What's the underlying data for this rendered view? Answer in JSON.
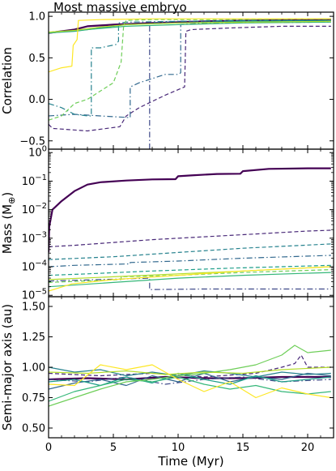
{
  "chart_data": {
    "title": "Most massive embryo",
    "xlabel": "Time (Myr)",
    "xlim": [
      0,
      22
    ],
    "x_ticks": [
      "0",
      "5",
      "10",
      "15",
      "20"
    ],
    "x_tick_values": [
      0,
      5,
      10,
      15,
      20
    ],
    "shared_x": true,
    "series_colors": [
      "#440154",
      "#482878",
      "#3e4989",
      "#31688e",
      "#26828e",
      "#1f9e89",
      "#35b779",
      "#6ece58",
      "#b5de2b",
      "#fde725"
    ],
    "panels": [
      {
        "type": "line",
        "ylabel": "Correlation",
        "yscale": "linear",
        "ylim": [
          -0.6,
          1.05
        ],
        "y_ticks": [
          "−0.5",
          "0.0",
          "0.5",
          "1.0"
        ],
        "y_tick_values": [
          -0.5,
          0.0,
          0.5,
          1.0
        ],
        "series": [
          {
            "color": "#440154",
            "style": "solid",
            "width": 2.2,
            "x": [
              0,
              2,
              3,
              5,
              8,
              12,
              16,
              20,
              21.8
            ],
            "y": [
              0.8,
              0.84,
              0.88,
              0.9,
              0.92,
              0.94,
              0.95,
              0.96,
              0.96
            ]
          },
          {
            "color": "#482878",
            "style": "dashed",
            "width": 1.2,
            "x": [
              0,
              0.3,
              3,
              5.5,
              6,
              7,
              9,
              10.5,
              10.6,
              11,
              14,
              18,
              21.8
            ],
            "y": [
              -0.3,
              -0.35,
              -0.38,
              -0.33,
              -0.2,
              -0.1,
              0.05,
              0.15,
              0.82,
              0.84,
              0.86,
              0.88,
              0.88
            ]
          },
          {
            "color": "#3e4989",
            "style": "dashdot",
            "width": 1.2,
            "x": [
              7.8,
              7.8,
              8,
              9,
              10,
              12,
              16,
              21.8
            ],
            "y": [
              -0.6,
              0.9,
              0.92,
              0.93,
              0.94,
              0.94,
              0.95,
              0.95
            ]
          },
          {
            "color": "#31688e",
            "style": "dashdot",
            "width": 1.2,
            "x": [
              0,
              2,
              4,
              6.3,
              6.3,
              7,
              9,
              10,
              10.2,
              10.2,
              12,
              21.8
            ],
            "y": [
              -0.2,
              -0.18,
              -0.2,
              -0.22,
              0.15,
              0.2,
              0.3,
              0.3,
              0.32,
              0.9,
              0.92,
              0.93
            ]
          },
          {
            "color": "#26828e",
            "style": "dashdot",
            "width": 1.2,
            "x": [
              0,
              1,
              2,
              3,
              3.3,
              3.3,
              4,
              5.2,
              5.4,
              5.4,
              6,
              10,
              15,
              21.8
            ],
            "y": [
              -0.05,
              -0.1,
              -0.18,
              -0.2,
              -0.2,
              0.62,
              0.62,
              0.66,
              0.7,
              0.92,
              0.93,
              0.94,
              0.95,
              0.95
            ]
          },
          {
            "color": "#1f9e89",
            "style": "solid",
            "width": 1.2,
            "x": [
              0,
              2,
              4,
              6,
              10,
              15,
              21.8
            ],
            "y": [
              0.8,
              0.82,
              0.86,
              0.9,
              0.92,
              0.94,
              0.95
            ]
          },
          {
            "color": "#35b779",
            "style": "solid",
            "width": 1.2,
            "x": [
              0,
              3,
              6,
              10,
              15,
              21.8
            ],
            "y": [
              0.8,
              0.84,
              0.88,
              0.9,
              0.92,
              0.93
            ]
          },
          {
            "color": "#6ece58",
            "style": "dashed",
            "width": 1.2,
            "x": [
              0,
              1,
              2,
              3,
              4,
              5,
              5.6,
              5.8,
              6,
              8,
              12,
              21.8
            ],
            "y": [
              -0.25,
              -0.2,
              -0.05,
              0.0,
              0.1,
              0.2,
              0.45,
              0.9,
              0.95,
              0.96,
              0.96,
              0.97
            ]
          },
          {
            "color": "#b5de2b",
            "style": "solid",
            "width": 1.2,
            "x": [
              0,
              2,
              4,
              6,
              10,
              15,
              21.8
            ],
            "y": [
              0.81,
              0.83,
              0.87,
              0.9,
              0.92,
              0.93,
              0.94
            ]
          },
          {
            "color": "#fde725",
            "style": "solid",
            "width": 1.2,
            "x": [
              0,
              1,
              1.8,
              1.9,
              2.2,
              2.3,
              4,
              8,
              14,
              21.8
            ],
            "y": [
              0.33,
              0.38,
              0.4,
              0.65,
              0.72,
              0.95,
              0.96,
              0.97,
              0.97,
              0.97
            ]
          }
        ]
      },
      {
        "type": "line",
        "ylabel": "Mass (M",
        "ylabel_sub": "⊕",
        "ylabel_close": ")",
        "yscale": "log",
        "ylim_log10": [
          -5.05,
          0.12
        ],
        "y_ticks": [
          {
            "base": "10",
            "exp": "0"
          },
          {
            "base": "10",
            "exp": "−1"
          },
          {
            "base": "10",
            "exp": "−2"
          },
          {
            "base": "10",
            "exp": "−3"
          },
          {
            "base": "10",
            "exp": "−4"
          },
          {
            "base": "10",
            "exp": "−5"
          }
        ],
        "y_tick_values_log10": [
          0,
          -1,
          -2,
          -3,
          -4,
          -5
        ],
        "series": [
          {
            "color": "#440154",
            "style": "solid",
            "width": 2.2,
            "x": [
              0,
              0.05,
              0.3,
              1,
              2,
              3,
              4,
              6,
              8,
              9.8,
              10,
              11,
              13,
              14.8,
              15,
              17,
              19,
              20,
              21.8
            ],
            "y_log10": [
              -3.5,
              -2.6,
              -2.0,
              -1.7,
              -1.35,
              -1.12,
              -1.04,
              -0.98,
              -0.94,
              -0.93,
              -0.83,
              -0.8,
              -0.75,
              -0.74,
              -0.65,
              -0.57,
              -0.56,
              -0.55,
              -0.55
            ]
          },
          {
            "color": "#482878",
            "style": "dashed",
            "width": 1.2,
            "x": [
              0,
              2,
              5,
              8,
              12,
              16,
              20,
              21.8
            ],
            "y_log10": [
              -3.3,
              -3.25,
              -3.15,
              -3.05,
              -2.95,
              -2.85,
              -2.75,
              -2.72
            ]
          },
          {
            "color": "#3e4989",
            "style": "dashdot",
            "width": 1.2,
            "x": [
              0,
              4,
              7.8,
              7.8,
              12,
              21.8
            ],
            "y_log10": [
              -4.5,
              -4.45,
              -4.4,
              -4.8,
              -4.78,
              -4.78
            ]
          },
          {
            "color": "#31688e",
            "style": "dashdot",
            "width": 1.2,
            "x": [
              0,
              2,
              6.3,
              6.3,
              10,
              15,
              21.8
            ],
            "y_log10": [
              -4.0,
              -3.95,
              -3.9,
              -3.85,
              -3.8,
              -3.7,
              -3.6
            ]
          },
          {
            "color": "#26828e",
            "style": "dashed",
            "width": 1.2,
            "x": [
              0,
              5,
              10,
              15,
              21.8
            ],
            "y_log10": [
              -3.75,
              -3.65,
              -3.5,
              -3.35,
              -3.2
            ]
          },
          {
            "color": "#1f9e89",
            "style": "dashed",
            "width": 1.2,
            "x": [
              0,
              3,
              8,
              14,
              21.8
            ],
            "y_log10": [
              -4.3,
              -4.25,
              -4.15,
              -4.05,
              -3.95
            ]
          },
          {
            "color": "#35b779",
            "style": "solid",
            "width": 1.2,
            "x": [
              0,
              5,
              10,
              15,
              21.8
            ],
            "y_log10": [
              -4.7,
              -4.55,
              -4.4,
              -4.3,
              -4.2
            ]
          },
          {
            "color": "#6ece58",
            "style": "dashed",
            "width": 1.2,
            "x": [
              0,
              5.6,
              5.6,
              10,
              15,
              21.8
            ],
            "y_log10": [
              -4.55,
              -4.45,
              -4.35,
              -4.3,
              -4.2,
              -4.1
            ]
          },
          {
            "color": "#b5de2b",
            "style": "solid",
            "width": 1.2,
            "x": [
              0,
              5,
              10,
              15,
              21.8
            ],
            "y_log10": [
              -4.45,
              -4.35,
              -4.25,
              -4.15,
              -4.0
            ]
          },
          {
            "color": "#fde725",
            "style": "solid",
            "width": 1.2,
            "x": [
              0,
              1.8,
              5,
              10,
              15,
              21.8
            ],
            "y_log10": [
              -4.85,
              -4.6,
              -4.45,
              -4.3,
              -4.15,
              -4.0
            ]
          }
        ]
      },
      {
        "type": "line",
        "ylabel": "Semi-major axis (au)",
        "yscale": "linear",
        "ylim": [
          0.42,
          1.58
        ],
        "y_ticks": [
          "0.50",
          "0.75",
          "1.00",
          "1.25",
          "1.50"
        ],
        "y_tick_values": [
          0.5,
          0.75,
          1.0,
          1.25,
          1.5
        ],
        "series": [
          {
            "color": "#440154",
            "style": "solid",
            "width": 2.2,
            "x": [
              0,
              3,
              6,
              9,
              12,
              15,
              18,
              20,
              21.8
            ],
            "y": [
              0.9,
              0.91,
              0.9,
              0.92,
              0.91,
              0.91,
              0.92,
              0.92,
              0.92
            ]
          },
          {
            "color": "#482878",
            "style": "dashed",
            "width": 1.2,
            "x": [
              0,
              4,
              8,
              12,
              16,
              18,
              19,
              19.5,
              20,
              21.8
            ],
            "y": [
              0.95,
              0.93,
              0.95,
              0.92,
              0.95,
              1.0,
              1.03,
              1.1,
              1.0,
              1.0
            ]
          },
          {
            "color": "#3e4989",
            "style": "dashdot",
            "width": 1.2,
            "x": [
              0,
              3,
              6,
              9,
              12,
              15,
              18,
              21.8
            ],
            "y": [
              0.9,
              0.88,
              0.92,
              0.86,
              0.9,
              0.92,
              0.88,
              0.9
            ]
          },
          {
            "color": "#31688e",
            "style": "solid",
            "width": 1.2,
            "x": [
              0,
              2,
              4,
              6,
              8,
              10,
              12,
              14,
              16,
              18,
              20,
              21.8
            ],
            "y": [
              0.82,
              0.87,
              0.9,
              0.85,
              0.93,
              0.88,
              0.95,
              0.88,
              0.92,
              0.9,
              0.95,
              0.93
            ]
          },
          {
            "color": "#26828e",
            "style": "solid",
            "width": 1.2,
            "x": [
              0,
              2,
              4,
              6,
              8,
              10,
              12,
              14,
              16,
              18,
              20,
              21.8
            ],
            "y": [
              1.0,
              0.96,
              0.98,
              0.93,
              0.96,
              0.93,
              0.97,
              0.95,
              0.92,
              0.96,
              0.94,
              0.95
            ]
          },
          {
            "color": "#1f9e89",
            "style": "solid",
            "width": 1.2,
            "x": [
              0,
              2,
              4,
              6,
              8,
              10,
              12,
              14,
              16,
              18,
              20,
              21.8
            ],
            "y": [
              0.88,
              0.9,
              0.85,
              0.92,
              0.87,
              0.95,
              0.9,
              0.86,
              0.93,
              0.88,
              0.9,
              0.92
            ]
          },
          {
            "color": "#35b779",
            "style": "solid",
            "width": 1.2,
            "x": [
              0,
              2,
              4,
              6,
              8,
              10,
              12,
              14,
              16,
              18,
              20,
              21.8
            ],
            "y": [
              0.72,
              0.8,
              0.85,
              0.9,
              0.88,
              0.92,
              0.86,
              0.82,
              0.85,
              0.8,
              0.78,
              0.8
            ]
          },
          {
            "color": "#6ece58",
            "style": "solid",
            "width": 1.2,
            "x": [
              0,
              2,
              4,
              6,
              8,
              10,
              12,
              14,
              16,
              18,
              19,
              20,
              21.8
            ],
            "y": [
              0.68,
              0.75,
              0.82,
              0.88,
              0.9,
              0.93,
              0.95,
              0.98,
              1.02,
              1.1,
              1.18,
              1.12,
              1.14
            ]
          },
          {
            "color": "#b5de2b",
            "style": "solid",
            "width": 1.2,
            "x": [
              0,
              3,
              6,
              9,
              12,
              15,
              18,
              21.8
            ],
            "y": [
              0.96,
              0.95,
              0.97,
              0.94,
              0.96,
              0.95,
              0.98,
              1.0
            ]
          },
          {
            "color": "#fde725",
            "style": "solid",
            "width": 1.2,
            "x": [
              0,
              2,
              4,
              6,
              8,
              10,
              12,
              14,
              16,
              18,
              20,
              21.8
            ],
            "y": [
              0.86,
              0.85,
              1.02,
              0.98,
              1.02,
              0.9,
              0.8,
              0.88,
              0.75,
              0.83,
              0.78,
              0.75
            ]
          }
        ]
      }
    ]
  }
}
